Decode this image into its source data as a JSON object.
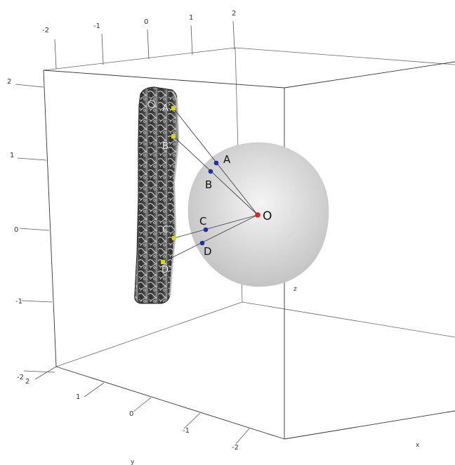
{
  "axes": {
    "top_ticks": [
      "-2",
      "-1",
      "0",
      "1",
      "2"
    ],
    "z_ticks": [
      "2",
      "1",
      "0",
      "-1",
      "-2"
    ],
    "y_ticks": [
      "2",
      "1",
      "0",
      "-1",
      "-2"
    ],
    "x_name": "x",
    "y_name": "y",
    "z_name": "z"
  },
  "points": {
    "A": "A",
    "B": "B",
    "C": "C",
    "D": "D",
    "O": "O",
    "A_prime": "A′",
    "B_prime": "B′",
    "C_prime": "C′",
    "D_prime": "D′"
  },
  "colors": {
    "sphere_point": "#1a2fa8",
    "center": "#e02020",
    "image_point": "#d8d800",
    "sphere": "#d4d4d4",
    "box": "#555555"
  }
}
